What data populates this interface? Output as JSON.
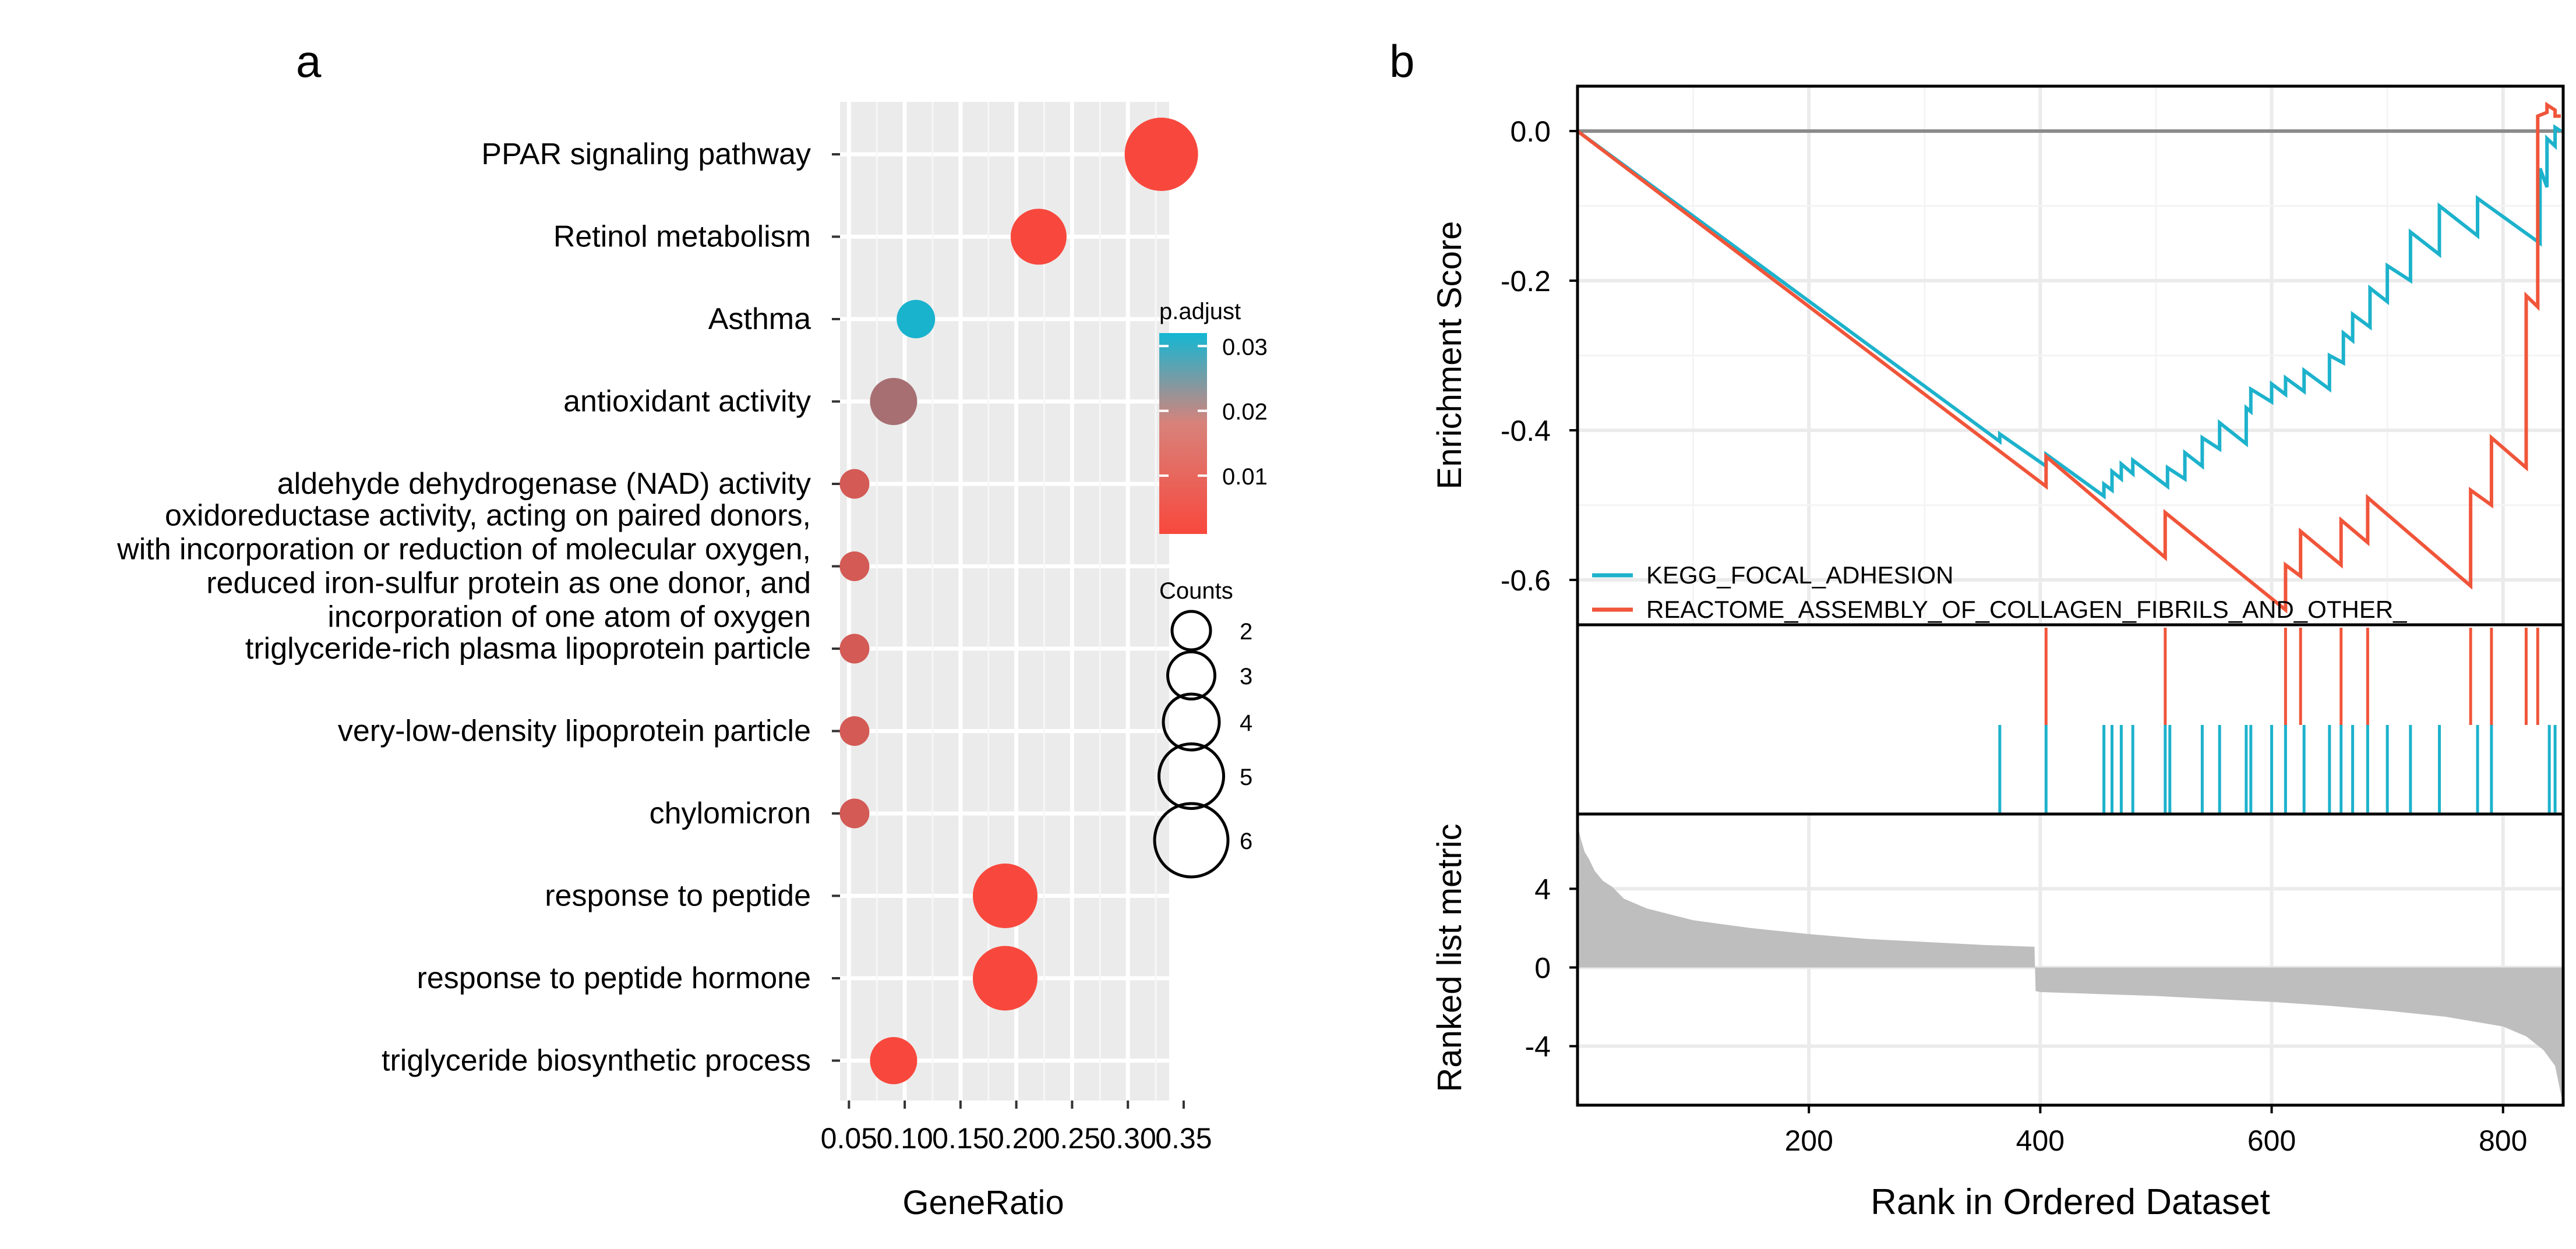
{
  "chart_data": [
    {
      "type": "scatter",
      "panel_label": "a",
      "xlabel": "GeneRatio",
      "x_ticks": [
        "0.05",
        "0.10",
        "0.15",
        "0.20",
        "0.25",
        "0.30",
        "0.35"
      ],
      "xlim": [
        0.042,
        0.337
      ],
      "categories": [
        [
          "PPAR signaling pathway"
        ],
        [
          "Retinol metabolism"
        ],
        [
          "Asthma"
        ],
        [
          "antioxidant activity"
        ],
        [
          "aldehyde dehydrogenase (NAD) activity"
        ],
        [
          "oxidoreductase activity, acting on paired donors,",
          "with incorporation or reduction of molecular oxygen,",
          "reduced iron-sulfur protein as one donor, and",
          "incorporation of one atom of oxygen"
        ],
        [
          "triglyceride-rich plasma lipoprotein particle"
        ],
        [
          "very-low-density lipoprotein particle"
        ],
        [
          "chylomicron"
        ],
        [
          "response to peptide"
        ],
        [
          "response to peptide hormone"
        ],
        [
          "triglyceride biosynthetic process"
        ]
      ],
      "gene_ratio": [
        0.33,
        0.22,
        0.11,
        0.09,
        0.055,
        0.055,
        0.055,
        0.055,
        0.055,
        0.19,
        0.19,
        0.09
      ],
      "counts": [
        6,
        4,
        2,
        3,
        1,
        1,
        1,
        1,
        1,
        5,
        5,
        3
      ],
      "p_adjust": [
        0.001,
        0.001,
        0.031,
        0.012,
        0.006,
        0.006,
        0.006,
        0.006,
        0.006,
        0.001,
        0.001,
        0.001
      ],
      "color_legend": {
        "title": "p.adjust",
        "ticks": [
          "0.03",
          "0.02",
          "0.01"
        ],
        "tick_values": [
          0.03,
          0.02,
          0.01
        ],
        "range": [
          0.001,
          0.032
        ],
        "low_color": "#f8483d",
        "high_color": "#13b7d3"
      },
      "size_legend": {
        "title": "Counts",
        "values": [
          "2",
          "3",
          "4",
          "5",
          "6"
        ]
      }
    },
    {
      "type": "line",
      "panel_label": "b",
      "es_panel": {
        "ylabel": "Enrichment Score",
        "y_ticks": [
          "0.0",
          "-0.2",
          "-0.4",
          "-0.6"
        ],
        "y_tick_values": [
          0.0,
          -0.2,
          -0.4,
          -0.6
        ],
        "ylim": [
          -0.66,
          0.06
        ],
        "series": [
          {
            "name": "KEGG_FOCAL_ADHESION",
            "color": "#1db2cc",
            "x": [
              0,
              365,
              365,
              405,
              405,
              455,
              455,
              462,
              462,
              470,
              470,
              480,
              480,
              510,
              510,
              525,
              525,
              540,
              540,
              555,
              555,
              578,
              578,
              582,
              582,
              600,
              600,
              612,
              612,
              628,
              628,
              650,
              650,
              662,
              662,
              670,
              670,
              685,
              685,
              700,
              700,
              720,
              720,
              745,
              745,
              778,
              778,
              832,
              832,
              838,
              838,
              845,
              845,
              850
            ],
            "y": [
              0,
              -0.415,
              -0.405,
              -0.448,
              -0.432,
              -0.488,
              -0.472,
              -0.48,
              -0.455,
              -0.465,
              -0.445,
              -0.458,
              -0.44,
              -0.475,
              -0.45,
              -0.465,
              -0.43,
              -0.448,
              -0.41,
              -0.425,
              -0.39,
              -0.418,
              -0.37,
              -0.375,
              -0.345,
              -0.362,
              -0.338,
              -0.352,
              -0.33,
              -0.348,
              -0.32,
              -0.345,
              -0.3,
              -0.31,
              -0.27,
              -0.28,
              -0.245,
              -0.262,
              -0.21,
              -0.228,
              -0.18,
              -0.2,
              -0.135,
              -0.165,
              -0.1,
              -0.14,
              -0.09,
              -0.15,
              -0.05,
              -0.075,
              -0.01,
              -0.02,
              0.005,
              0.0
            ]
          },
          {
            "name": "REACTOME_ASSEMBLY_OF_COLLAGEN_FIBRILS_AND_OTHER_",
            "color": "#f0553a",
            "x": [
              0,
              405,
              405,
              508,
              508,
              612,
              612,
              625,
              625,
              660,
              660,
              683,
              683,
              772,
              772,
              790,
              790,
              820,
              820,
              830,
              830,
              838,
              838,
              845,
              845,
              850
            ],
            "y": [
              0,
              -0.475,
              -0.435,
              -0.57,
              -0.51,
              -0.64,
              -0.58,
              -0.595,
              -0.535,
              -0.58,
              -0.52,
              -0.55,
              -0.49,
              -0.608,
              -0.48,
              -0.5,
              -0.41,
              -0.45,
              -0.22,
              -0.235,
              0.02,
              0.025,
              0.035,
              0.028,
              0.02,
              0.02
            ]
          }
        ]
      },
      "hits": {
        "KEGG_FOCAL_ADHESION": [
          365,
          405,
          455,
          462,
          470,
          480,
          508,
          512,
          540,
          555,
          578,
          582,
          600,
          612,
          628,
          650,
          660,
          670,
          683,
          700,
          720,
          745,
          778,
          790,
          840,
          845
        ],
        "REACTOME_ASSEMBLY_OF_COLLAGEN_FIBRILS_AND_OTHER_": [
          405,
          508,
          612,
          625,
          660,
          683,
          772,
          790,
          820,
          830
        ]
      },
      "metric_panel": {
        "ylabel": "Ranked list metric",
        "y_ticks": [
          "4",
          "0",
          "-4"
        ],
        "y_tick_values": [
          4,
          0,
          -4
        ],
        "ylim": [
          -7,
          7.8
        ],
        "fill_color": "#bebebe",
        "x": [
          1,
          3,
          6,
          10,
          15,
          22,
          30,
          40,
          60,
          100,
          150,
          200,
          250,
          300,
          350,
          395,
          396,
          400,
          450,
          500,
          550,
          600,
          650,
          700,
          750,
          800,
          820,
          835,
          845,
          852
        ],
        "y": [
          7,
          6.5,
          5.9,
          5.5,
          4.9,
          4.4,
          4.1,
          3.5,
          3.0,
          2.4,
          2.0,
          1.7,
          1.45,
          1.3,
          1.15,
          1.05,
          -1.2,
          -1.25,
          -1.35,
          -1.45,
          -1.6,
          -1.75,
          -1.95,
          -2.2,
          -2.5,
          -3.0,
          -3.5,
          -4.2,
          -5.0,
          -7.0
        ]
      },
      "xlabel": "Rank in Ordered Dataset",
      "x_ticks": [
        "200",
        "400",
        "600",
        "800"
      ],
      "x_tick_values": [
        200,
        400,
        600,
        800
      ],
      "xlim": [
        0,
        852
      ]
    }
  ]
}
